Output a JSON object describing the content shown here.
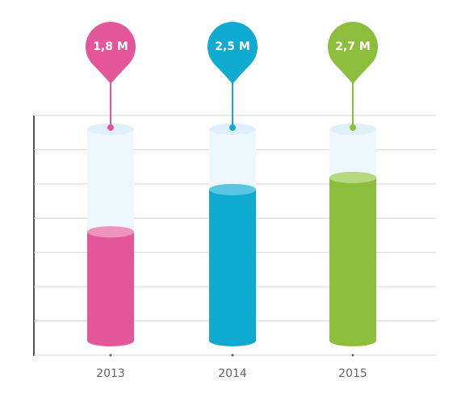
{
  "chart_data": {
    "type": "bar",
    "categories": [
      "2013",
      "2014",
      "2015"
    ],
    "values": [
      1.8,
      2.5,
      2.7
    ],
    "value_labels": [
      "1,8 M",
      "2,5 M",
      "2,7 M"
    ],
    "colors": [
      "#e4569a",
      "#0eaad0",
      "#8cbe3c"
    ],
    "cap_colors": [
      "#ee93bd",
      "#5ac6e2",
      "#b5d77f"
    ],
    "ylim": [
      0,
      3.5
    ],
    "grid": true
  }
}
